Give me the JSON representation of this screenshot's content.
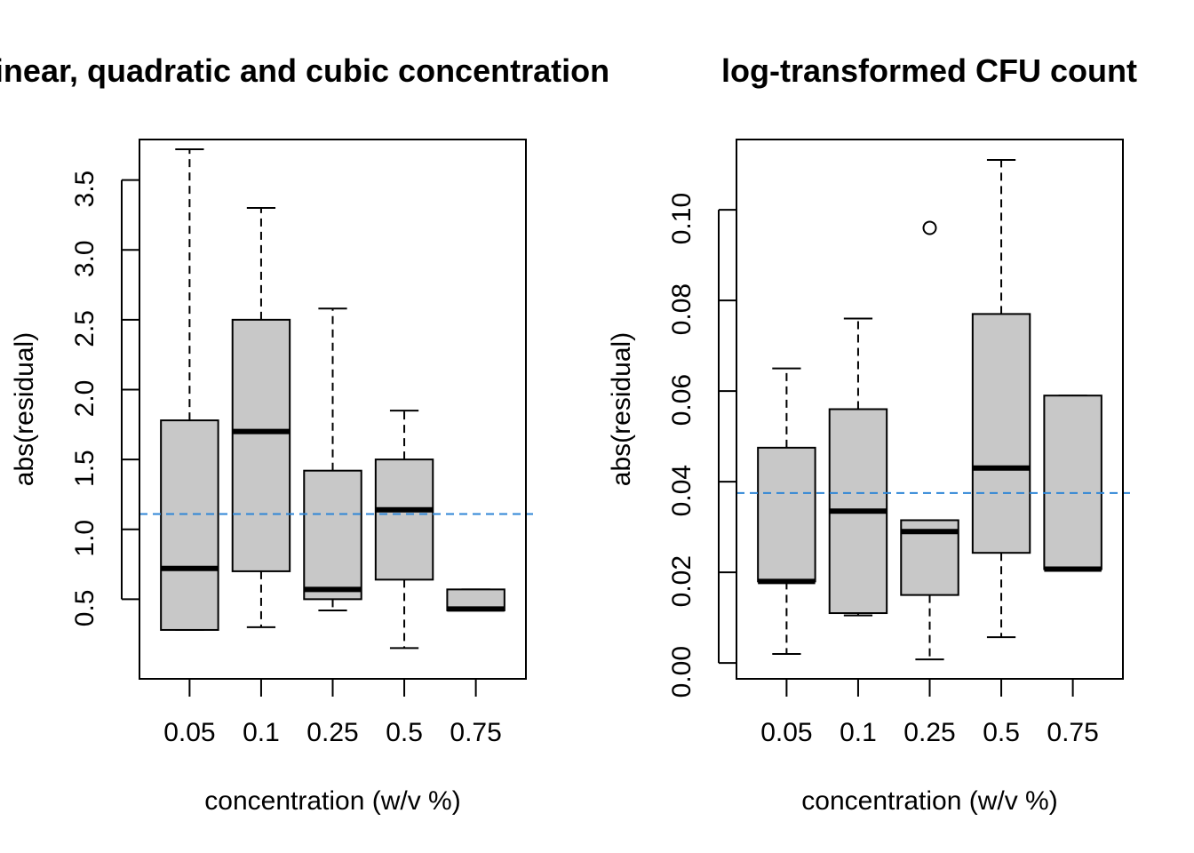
{
  "chart_data": [
    {
      "type": "boxplot",
      "title": "linear, quadratic and cubic concentration",
      "xlabel": "concentration (w/v %)",
      "ylabel": "abs(residual)",
      "categories": [
        "0.05",
        "0.1",
        "0.25",
        "0.5",
        "0.75"
      ],
      "yticks": [
        0.5,
        1.0,
        1.5,
        2.0,
        2.5,
        3.0,
        3.5
      ],
      "ytick_labels": [
        "0.5",
        "1.0",
        "1.5",
        "2.0",
        "2.5",
        "3.0",
        "3.5"
      ],
      "ylim": [
        -0.07,
        3.79
      ],
      "reference_line": 1.11,
      "boxes": [
        {
          "category": "0.05",
          "whisker_low": 0.28,
          "q1": 0.28,
          "median": 0.72,
          "q3": 1.78,
          "whisker_high": 3.72,
          "outliers": []
        },
        {
          "category": "0.1",
          "whisker_low": 0.3,
          "q1": 0.7,
          "median": 1.7,
          "q3": 2.5,
          "whisker_high": 3.3,
          "outliers": []
        },
        {
          "category": "0.25",
          "whisker_low": 0.42,
          "q1": 0.5,
          "median": 0.57,
          "q3": 1.42,
          "whisker_high": 2.58,
          "outliers": []
        },
        {
          "category": "0.5",
          "whisker_low": 0.15,
          "q1": 0.64,
          "median": 1.14,
          "q3": 1.5,
          "whisker_high": 1.85,
          "outliers": []
        },
        {
          "category": "0.75",
          "whisker_low": 0.42,
          "q1": 0.42,
          "median": 0.43,
          "q3": 0.57,
          "whisker_high": 0.57,
          "outliers": []
        }
      ]
    },
    {
      "type": "boxplot",
      "title": "log-transformed CFU count",
      "xlabel": "concentration (w/v %)",
      "ylabel": "abs(residual)",
      "categories": [
        "0.05",
        "0.1",
        "0.25",
        "0.5",
        "0.75"
      ],
      "yticks": [
        0.0,
        0.02,
        0.04,
        0.06,
        0.08,
        0.1
      ],
      "ytick_labels": [
        "0.00",
        "0.02",
        "0.04",
        "0.06",
        "0.08",
        "0.10"
      ],
      "ylim": [
        -0.0035,
        0.1155
      ],
      "reference_line": 0.0375,
      "boxes": [
        {
          "category": "0.05",
          "whisker_low": 0.002,
          "q1": 0.018,
          "median": 0.018,
          "q3": 0.0475,
          "whisker_high": 0.065,
          "outliers": []
        },
        {
          "category": "0.1",
          "whisker_low": 0.0105,
          "q1": 0.011,
          "median": 0.0335,
          "q3": 0.056,
          "whisker_high": 0.076,
          "outliers": []
        },
        {
          "category": "0.25",
          "whisker_low": 0.0008,
          "q1": 0.015,
          "median": 0.029,
          "q3": 0.0315,
          "whisker_high": 0.0315,
          "outliers": [
            0.096
          ]
        },
        {
          "category": "0.5",
          "whisker_low": 0.0057,
          "q1": 0.0243,
          "median": 0.043,
          "q3": 0.077,
          "whisker_high": 0.111,
          "outliers": []
        },
        {
          "category": "0.75",
          "whisker_low": 0.0207,
          "q1": 0.0207,
          "median": 0.0207,
          "q3": 0.059,
          "whisker_high": 0.059,
          "outliers": []
        }
      ]
    }
  ],
  "colors": {
    "box_fill": "#c8c8c8",
    "reference_line": "#2f86d6",
    "stroke": "#000000"
  }
}
